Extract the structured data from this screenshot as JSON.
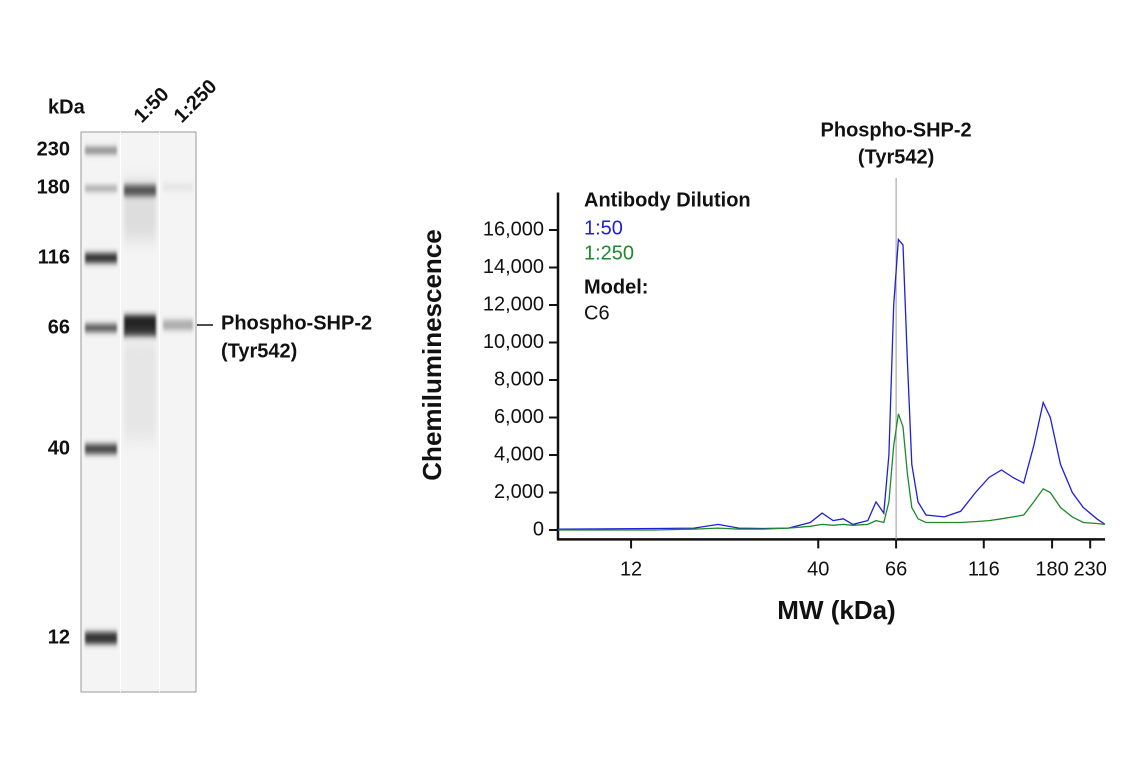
{
  "blot": {
    "unit": "kDa",
    "lanes": [
      "1:50",
      "1:250"
    ],
    "markers": [
      230,
      180,
      116,
      66,
      40,
      12
    ],
    "band_label": [
      "Phospho-SHP-2",
      "(Tyr542)"
    ]
  },
  "chart_data": {
    "type": "line",
    "xlabel": "MW (kDa)",
    "ylabel": "Chemiluminescence",
    "xscale": "log",
    "x": [
      7.5,
      10,
      14,
      18,
      21,
      24,
      28,
      33,
      38,
      41,
      44,
      47,
      50,
      55,
      58,
      61,
      63,
      65,
      67,
      69,
      71,
      73,
      76,
      80,
      90,
      100,
      110,
      120,
      130,
      140,
      150,
      160,
      170,
      178,
      190,
      205,
      220,
      240,
      253
    ],
    "series": [
      {
        "name": "1:50",
        "color": "#1f1fd6",
        "values": [
          50,
          60,
          80,
          100,
          300,
          100,
          80,
          100,
          400,
          900,
          500,
          600,
          300,
          500,
          1500,
          900,
          4000,
          12000,
          15500,
          15200,
          9000,
          3500,
          1500,
          800,
          700,
          1000,
          2000,
          2800,
          3200,
          2800,
          2500,
          4500,
          6800,
          6000,
          3500,
          2000,
          1200,
          600,
          300
        ]
      },
      {
        "name": "1:250",
        "color": "#1e8a2a",
        "values": [
          0,
          0,
          0,
          50,
          100,
          50,
          50,
          100,
          200,
          300,
          250,
          300,
          250,
          300,
          500,
          400,
          1500,
          4500,
          6200,
          5500,
          3000,
          1200,
          600,
          400,
          400,
          400,
          450,
          500,
          600,
          700,
          800,
          1500,
          2200,
          2000,
          1200,
          700,
          400,
          350,
          300
        ]
      }
    ],
    "legend_title": "Antibody Dilution",
    "model_label": "Model:",
    "model": "C6",
    "annotation": {
      "lines": [
        "Phospho-SHP-2",
        "(Tyr542)"
      ],
      "x": 66
    },
    "xlim": [
      7.5,
      253
    ],
    "xticks": [
      12,
      40,
      66,
      116,
      180,
      230
    ],
    "ylim": [
      -500,
      18000
    ],
    "yticks": [
      0,
      {
        "value": 2000,
        "label": "2,000"
      },
      {
        "value": 4000,
        "label": "4,000"
      },
      {
        "value": 6000,
        "label": "6,000"
      },
      {
        "value": 8000,
        "label": "8,000"
      },
      {
        "value": 10000,
        "label": "10,000"
      },
      {
        "value": 12000,
        "label": "12,000"
      },
      {
        "value": 14000,
        "label": "14,000"
      },
      {
        "value": 16000,
        "label": "16,000"
      }
    ]
  }
}
